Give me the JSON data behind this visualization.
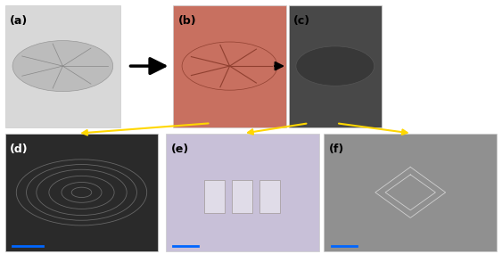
{
  "figsize": [
    5.63,
    2.85
  ],
  "dpi": 100,
  "bg_color": "#ffffff",
  "panel_positions": {
    "a": [
      0.01,
      0.5,
      0.23,
      0.48
    ],
    "b": [
      0.345,
      0.5,
      0.225,
      0.48
    ],
    "c": [
      0.575,
      0.5,
      0.185,
      0.48
    ],
    "d": [
      0.01,
      0.01,
      0.305,
      0.465
    ],
    "e": [
      0.33,
      0.01,
      0.305,
      0.465
    ],
    "f": [
      0.645,
      0.01,
      0.345,
      0.465
    ]
  },
  "panel_colors": {
    "a": "#d8d8d8",
    "b": "#c87060",
    "c": "#484848",
    "d": "#2a2a2a",
    "e": "#c8c0d8",
    "f": "#909090"
  },
  "label_colors": {
    "a": "#000000",
    "b": "#000000",
    "c": "#000000",
    "d": "#ffffff",
    "e": "#000000",
    "f": "#000000"
  },
  "label_fontsize": 9,
  "label_fontweight": "bold",
  "scalebar_color": "#0066ff",
  "yellow_color": "#FFD700",
  "yellow_lw": 1.5
}
